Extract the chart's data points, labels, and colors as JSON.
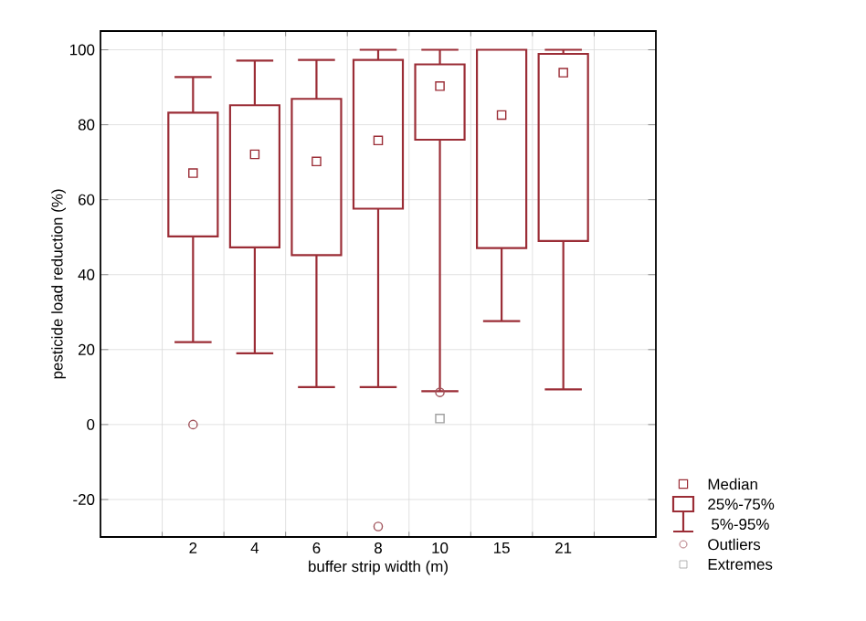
{
  "chart_data": {
    "type": "box",
    "xlabel": "buffer strip width (m)",
    "ylabel": "pesticide load reduction (%)",
    "categories": [
      "2",
      "4",
      "6",
      "8",
      "10",
      "15",
      "21"
    ],
    "ylim": [
      -30,
      105
    ],
    "yticks": [
      -20,
      0,
      20,
      40,
      60,
      80,
      100
    ],
    "grid": true,
    "legend": "right",
    "annotations": [
      "Median",
      "25%-75%",
      "5%-95%"
    ],
    "series": [
      {
        "type": "box",
        "color": "#9b2d36",
        "boxes": [
          {
            "low": 22,
            "q1": 50.2,
            "median": 67.1,
            "q3": 83.2,
            "high": 92.7
          },
          {
            "low": 19,
            "q1": 47.3,
            "median": 72.1,
            "q3": 85.2,
            "high": 97.1
          },
          {
            "low": 10,
            "q1": 45.2,
            "median": 70.2,
            "q3": 86.9,
            "high": 97.3
          },
          {
            "low": 10,
            "q1": 57.6,
            "median": 75.8,
            "q3": 97.3,
            "high": 100
          },
          {
            "low": 8.9,
            "q1": 76,
            "median": 90.3,
            "q3": 96.1,
            "high": 100
          },
          {
            "low": 27.6,
            "q1": 47.1,
            "median": 82.6,
            "q3": 100,
            "high": 100
          },
          {
            "low": 9.4,
            "q1": 49,
            "median": 93.9,
            "q3": 98.9,
            "high": 100
          }
        ]
      },
      {
        "type": "scatter",
        "name": "Outliers",
        "color": "#a0525a",
        "marker": "circle",
        "x": [
          "2",
          "8",
          "10"
        ],
        "values": [
          0,
          -27.2,
          8.6
        ]
      },
      {
        "type": "scatter",
        "name": "Extremes",
        "color": "#a0a0a0",
        "marker": "square",
        "x": [
          "10"
        ],
        "values": [
          1.6
        ]
      }
    ]
  }
}
